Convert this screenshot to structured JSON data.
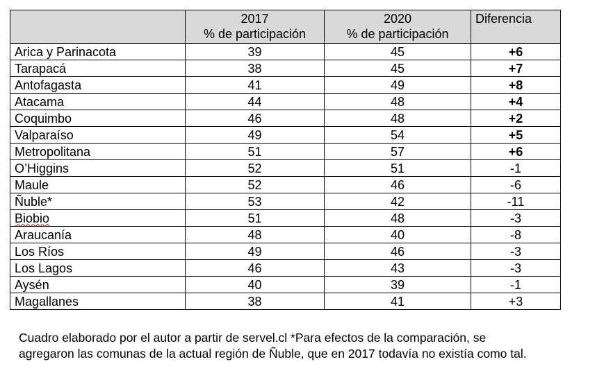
{
  "table": {
    "headers": {
      "region": "",
      "y2017_year": "2017",
      "y2017_sub": "% de participación",
      "y2020_year": "2020",
      "y2020_sub": "% de participación",
      "diff": "Diferencia"
    },
    "rows": [
      {
        "region": "Arica y Parinacota",
        "v2017": "39",
        "v2020": "45",
        "diff": "+6"
      },
      {
        "region": "Tarapacá",
        "v2017": "38",
        "v2020": "45",
        "diff": "+7"
      },
      {
        "region": "Antofagasta",
        "v2017": "41",
        "v2020": "49",
        "diff": "+8"
      },
      {
        "region": "Atacama",
        "v2017": "44",
        "v2020": "48",
        "diff": "+4"
      },
      {
        "region": "Coquimbo",
        "v2017": "46",
        "v2020": "48",
        "diff": "+2"
      },
      {
        "region": "Valparaíso",
        "v2017": "49",
        "v2020": "54",
        "diff": "+5"
      },
      {
        "region": "Metropolitana",
        "v2017": "51",
        "v2020": "57",
        "diff": "+6"
      },
      {
        "region": "O’Higgins",
        "v2017": "52",
        "v2020": "51",
        "diff": "-1"
      },
      {
        "region": "Maule",
        "v2017": "52",
        "v2020": "46",
        "diff": "-6"
      },
      {
        "region": "Ñuble*",
        "v2017": "53",
        "v2020": "42",
        "diff": "-11"
      },
      {
        "region": "Biobio",
        "v2017": "51",
        "v2020": "48",
        "diff": "-3"
      },
      {
        "region": "Araucanía",
        "v2017": "48",
        "v2020": "40",
        "diff": "-8"
      },
      {
        "region": "Los Ríos",
        "v2017": "49",
        "v2020": "46",
        "diff": "-3"
      },
      {
        "region": "Los Lagos",
        "v2017": "46",
        "v2020": "43",
        "diff": "-3"
      },
      {
        "region": "Aysén",
        "v2017": "40",
        "v2020": "39",
        "diff": "-1"
      },
      {
        "region": "Magallanes",
        "v2017": "38",
        "v2020": "41",
        "diff": "+3"
      }
    ]
  },
  "footnote": {
    "line1": "Cuadro elaborado por el autor a partir de servel.cl  *Para efectos de la comparación, se",
    "line2": "agregaron las comunas de la actual región de Ñuble, que en 2017 todavía no existía como tal."
  },
  "colors": {
    "header_background": "#d9d9d9",
    "spellcheck_underline": "#d00000"
  }
}
